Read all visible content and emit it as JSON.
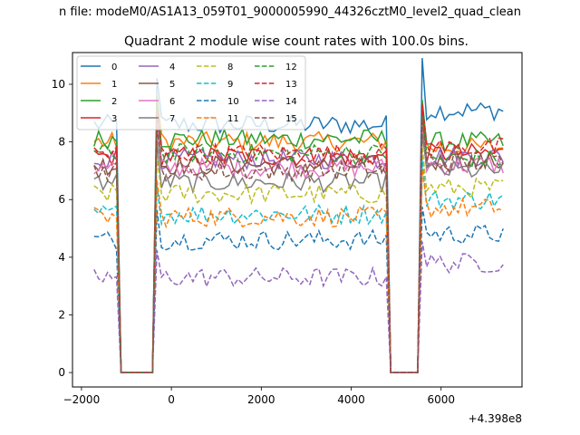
{
  "chart_data": {
    "type": "line",
    "suptitle": "n file: modeM0/AS1A13_059T01_9000005990_44326cztM0_level2_quad_clean",
    "title": "Quadrant 2 module wise count rates with 100.0s bins.",
    "xlabel": "",
    "ylabel": "",
    "offset_text": "+4.398e8",
    "xlim": [
      -2200,
      7800
    ],
    "ylim": [
      -0.5,
      11.1
    ],
    "xticks": [
      -2000,
      0,
      2000,
      4000,
      6000
    ],
    "xtick_labels": [
      "−2000",
      "0",
      "2000",
      "4000",
      "6000"
    ],
    "yticks": [
      0,
      2,
      4,
      6,
      8,
      10
    ],
    "ytick_labels": [
      "0",
      "2",
      "4",
      "6",
      "8",
      "10"
    ],
    "grid": false,
    "legend_position": "top-left",
    "legend_columns": 4,
    "x": [
      -1720,
      -1620,
      -1520,
      -1420,
      -1320,
      -1220,
      -1120,
      -1020,
      -920,
      -820,
      -720,
      -620,
      -520,
      -420,
      -320,
      -220,
      -120,
      -20,
      80,
      180,
      280,
      380,
      480,
      580,
      680,
      780,
      880,
      980,
      1080,
      1180,
      1280,
      1380,
      1480,
      1580,
      1680,
      1780,
      1880,
      1980,
      2080,
      2180,
      2280,
      2380,
      2480,
      2580,
      2680,
      2780,
      2880,
      2980,
      3080,
      3180,
      3280,
      3380,
      3480,
      3580,
      3680,
      3780,
      3880,
      3980,
      4080,
      4180,
      4280,
      4380,
      4480,
      4580,
      4680,
      4780,
      4880,
      4980,
      5080,
      5180,
      5280,
      5380,
      5480,
      5580,
      5680,
      5780,
      5880,
      5980,
      6080,
      6180,
      6280,
      6380,
      6480,
      6580,
      6680,
      6780,
      6880,
      6980,
      7080,
      7180,
      7280,
      7380
    ],
    "gap_start": 6,
    "gap_end": 13,
    "gap2_start": 66,
    "gap2_end": 72,
    "series": [
      {
        "name": "0",
        "color": "#1f77b4",
        "style": "solid",
        "level": 8.6,
        "end_level": 9.1
      },
      {
        "name": "1",
        "color": "#ff7f0e",
        "style": "solid",
        "level": 8.0,
        "end_level": 7.8
      },
      {
        "name": "2",
        "color": "#2ca02c",
        "style": "solid",
        "level": 8.1,
        "end_level": 8.0
      },
      {
        "name": "3",
        "color": "#d62728",
        "style": "solid",
        "level": 7.5,
        "end_level": 7.6
      },
      {
        "name": "4",
        "color": "#9467bd",
        "style": "solid",
        "level": 7.4,
        "end_level": 7.5
      },
      {
        "name": "5",
        "color": "#8c564b",
        "style": "solid",
        "level": 7.2,
        "end_level": 7.3
      },
      {
        "name": "6",
        "color": "#e377c2",
        "style": "solid",
        "level": 7.1,
        "end_level": 7.2
      },
      {
        "name": "7",
        "color": "#7f7f7f",
        "style": "solid",
        "level": 6.6,
        "end_level": 7.0
      },
      {
        "name": "8",
        "color": "#bcbd22",
        "style": "dashed",
        "level": 6.2,
        "end_level": 6.4
      },
      {
        "name": "9",
        "color": "#17becf",
        "style": "dashed",
        "level": 5.5,
        "end_level": 6.0
      },
      {
        "name": "10",
        "color": "#1f77b4",
        "style": "dashed",
        "level": 4.6,
        "end_level": 4.8
      },
      {
        "name": "11",
        "color": "#ff7f0e",
        "style": "dashed",
        "level": 5.4,
        "end_level": 5.7
      },
      {
        "name": "12",
        "color": "#2ca02c",
        "style": "dashed",
        "level": 7.6,
        "end_level": 7.4
      },
      {
        "name": "13",
        "color": "#d62728",
        "style": "dashed",
        "level": 7.6,
        "end_level": 7.8
      },
      {
        "name": "14",
        "color": "#9467bd",
        "style": "dashed",
        "level": 3.3,
        "end_level": 3.8
      },
      {
        "name": "15",
        "color": "#8c564b",
        "style": "dashed",
        "level": 7.0,
        "end_level": 7.3
      }
    ]
  }
}
